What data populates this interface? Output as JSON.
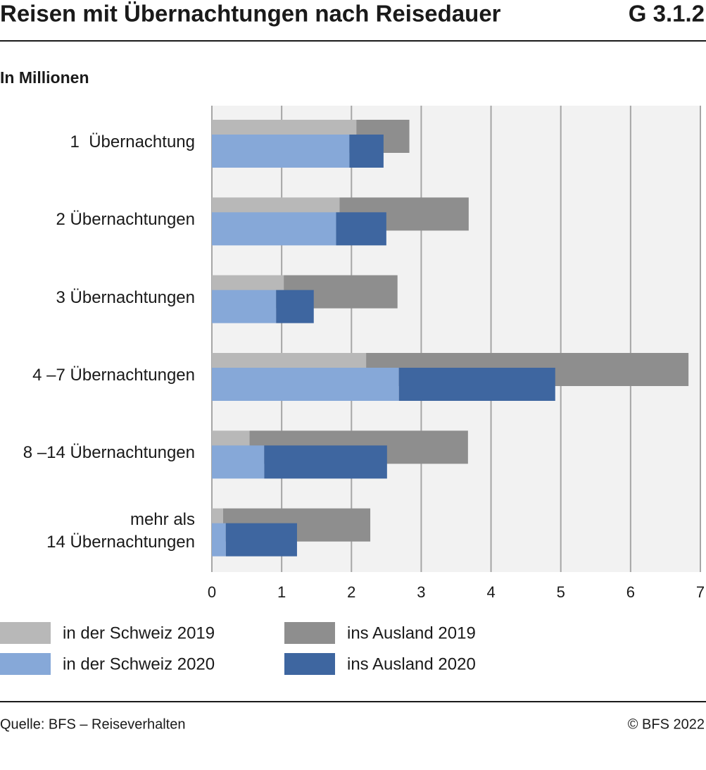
{
  "chart_data": {
    "type": "bar",
    "orientation": "horizontal",
    "title": "Reisen mit Übernachtungen nach Reisedauer",
    "figure_id": "G 3.1.2",
    "subtitle": "In Millionen",
    "categories": [
      "1  Übernachtung",
      "2 Übernachtungen",
      "3 Übernachtungen",
      "4 –7 Übernachtungen",
      "8 –14 Übernachtungen",
      "mehr als\n14 Übernachtungen"
    ],
    "series": [
      {
        "name": "in der Schweiz 2019",
        "color": "#b8b8b8",
        "values": [
          2.07,
          1.83,
          1.03,
          2.21,
          0.54,
          0.16
        ]
      },
      {
        "name": "ins Ausland 2019",
        "color": "#8e8e8e",
        "values": [
          0.76,
          1.85,
          1.63,
          4.62,
          3.13,
          2.11
        ]
      },
      {
        "name": "in der Schweiz 2020",
        "color": "#86a8d8",
        "values": [
          1.97,
          1.78,
          0.92,
          2.68,
          0.75,
          0.2
        ]
      },
      {
        "name": "ins Ausland 2020",
        "color": "#3e66a0",
        "values": [
          0.49,
          0.72,
          0.54,
          2.24,
          1.76,
          1.02
        ]
      }
    ],
    "xlim": [
      0,
      7
    ],
    "xticks": [
      0,
      1,
      2,
      3,
      4,
      5,
      6,
      7
    ],
    "grid": true,
    "source": "Quelle: BFS – Reiseverhalten",
    "copyright": "© BFS 2022"
  }
}
